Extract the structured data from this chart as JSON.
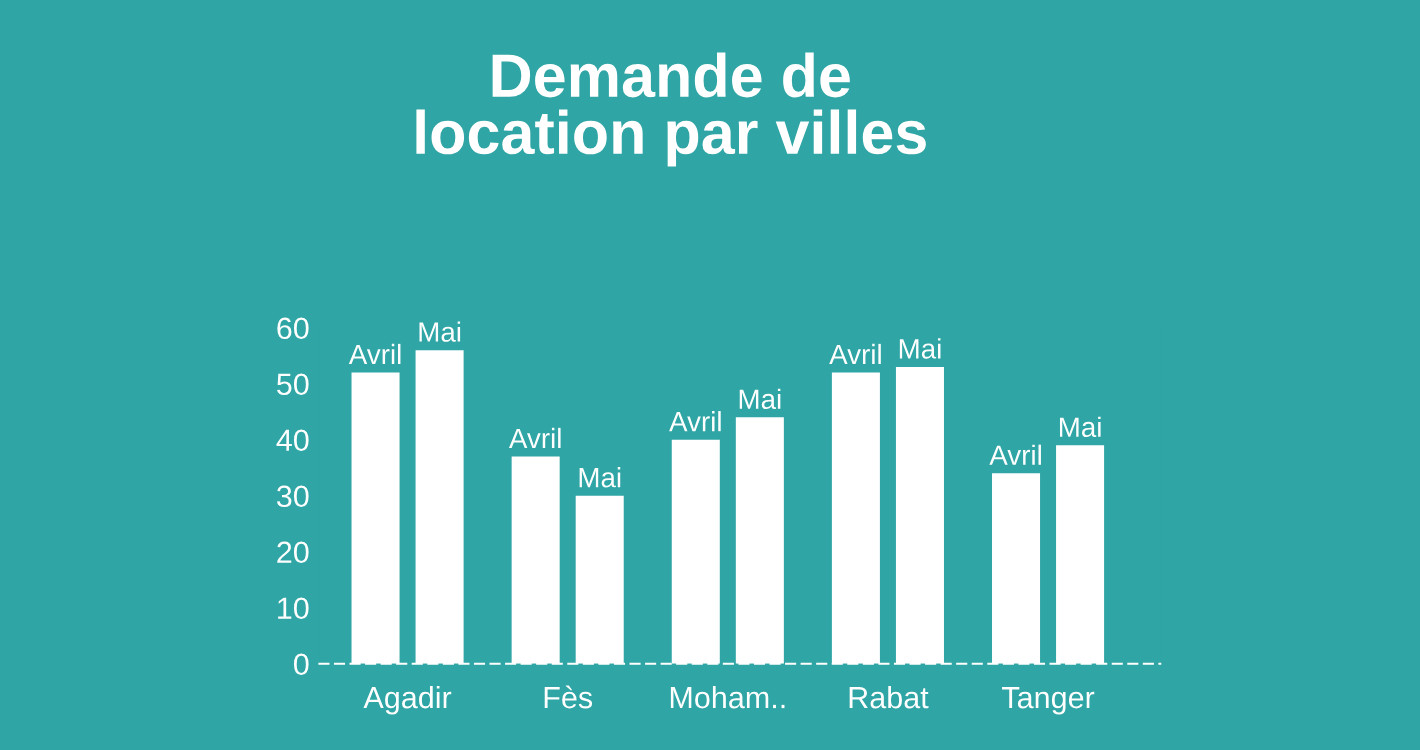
{
  "chart_data": {
    "type": "bar",
    "title": "Demande de\nlocation par villes",
    "categories": [
      "Agadir",
      "Fès",
      "Moham..",
      "Rabat",
      "Tanger"
    ],
    "series": [
      {
        "name": "Avril",
        "color": "#ffffff",
        "values": [
          52,
          37,
          40,
          52,
          34
        ]
      },
      {
        "name": "Mai",
        "color": "#ffffff",
        "values": [
          56,
          30,
          44,
          53,
          39
        ]
      }
    ],
    "ylim": [
      0,
      60
    ],
    "yticks": [
      0,
      10,
      20,
      30,
      40,
      50,
      60
    ],
    "grid": false,
    "legend": false
  }
}
